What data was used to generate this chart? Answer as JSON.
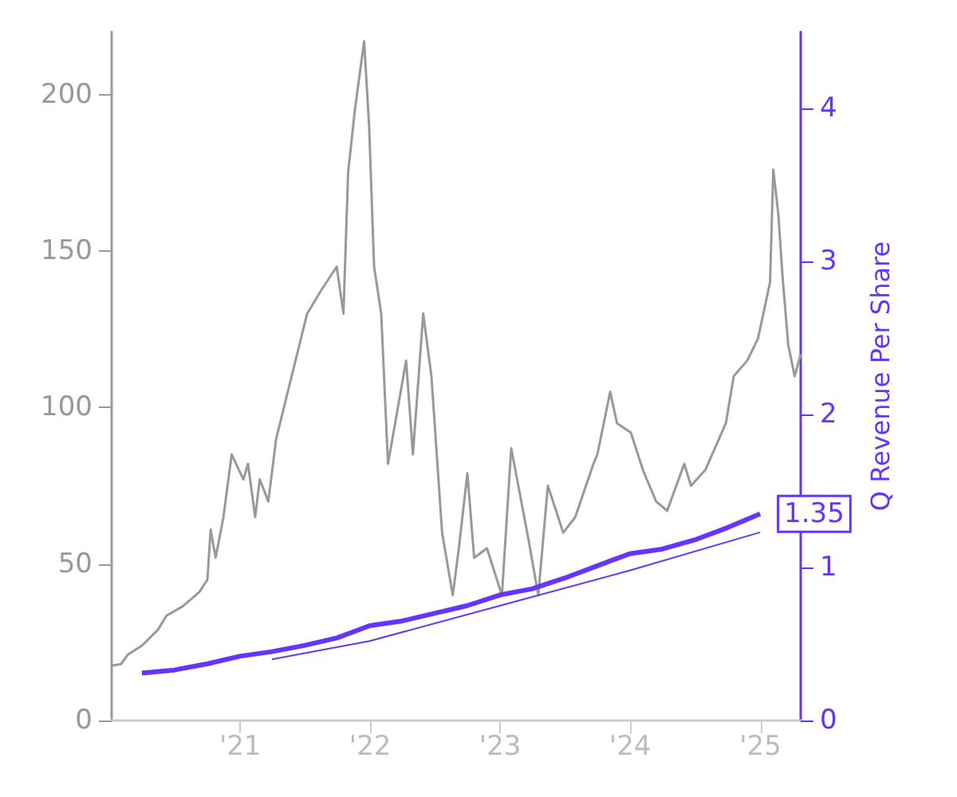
{
  "chart_data": {
    "type": "line",
    "y2label": "Q Revenue Per Share",
    "grid": false,
    "marker": "none",
    "xlim": [
      "2020-01-06",
      "2025-04-24"
    ],
    "xticks": [
      {
        "value": "2021-01-01",
        "label": "'21"
      },
      {
        "value": "2022-01-01",
        "label": "'22"
      },
      {
        "value": "2023-01-01",
        "label": "'23"
      },
      {
        "value": "2024-01-01",
        "label": "'24"
      },
      {
        "value": "2025-01-01",
        "label": "'25"
      }
    ],
    "ylim": [
      0,
      220
    ],
    "yticks": [
      0,
      50,
      100,
      150,
      200
    ],
    "y2lim": [
      0,
      4.5
    ],
    "y2ticks": [
      0,
      1,
      2,
      3,
      4
    ],
    "series": [
      {
        "color": "#999999",
        "x": [
          "2020-01-06",
          "2020-02-01",
          "2020-02-20",
          "2020-04-01",
          "2020-05-15",
          "2020-06-08",
          "2020-07-24",
          "2020-09-08",
          "2020-10-01",
          "2020-10-10",
          "2020-10-24",
          "2020-11-15",
          "2020-12-08",
          "2021-01-10",
          "2021-01-23",
          "2021-02-12",
          "2021-02-25",
          "2021-03-21",
          "2021-04-12",
          "2021-07-08",
          "2021-08-14",
          "2021-09-29",
          "2021-10-18",
          "2021-10-31",
          "2021-11-19",
          "2021-12-15",
          "2021-12-29",
          "2022-01-12",
          "2022-02-01",
          "2022-02-20",
          "2022-04-12",
          "2022-05-01",
          "2022-05-30",
          "2022-06-22",
          "2022-07-22",
          "2022-08-21",
          "2022-09-07",
          "2022-10-01",
          "2022-10-20",
          "2022-11-25",
          "2023-01-06",
          "2023-02-01",
          "2023-03-23",
          "2023-04-18",
          "2023-05-15",
          "2023-06-13",
          "2023-06-27",
          "2023-07-31",
          "2023-09-20",
          "2023-10-01",
          "2023-11-06",
          "2023-11-25",
          "2024-01-03",
          "2024-02-06",
          "2024-03-14",
          "2024-04-14",
          "2024-06-01",
          "2024-06-20",
          "2024-07-30",
          "2024-09-26",
          "2024-10-18",
          "2024-11-25",
          "2024-12-25",
          "2025-01-28",
          "2025-02-06",
          "2025-02-20",
          "2025-03-04",
          "2025-03-20",
          "2025-04-07",
          "2025-04-24"
        ],
        "values": [
          17.5,
          18,
          21,
          24,
          29,
          33.5,
          36.5,
          41,
          45,
          61,
          52,
          65,
          85,
          77,
          82,
          65,
          77,
          70,
          90,
          130,
          137,
          145,
          130,
          175,
          195,
          217,
          190,
          145,
          130,
          82,
          115,
          85,
          130,
          110,
          60,
          40,
          55,
          79,
          52,
          55,
          40,
          87,
          57,
          40,
          75,
          65,
          60,
          65,
          82,
          85,
          105,
          95,
          92,
          80,
          70,
          67,
          82,
          75,
          80,
          95,
          110,
          115,
          122,
          140,
          176,
          162,
          142,
          120,
          110,
          117
        ]
      },
      {
        "color": "#6633ff",
        "axis": "y2",
        "x": [
          "2020-03-31",
          "2020-06-30",
          "2020-09-30",
          "2020-12-31",
          "2021-03-31",
          "2021-06-30",
          "2021-09-30",
          "2021-12-31",
          "2022-03-31",
          "2022-06-30",
          "2022-09-30",
          "2022-12-31",
          "2023-03-31",
          "2023-06-30",
          "2023-09-30",
          "2023-12-31",
          "2024-03-31",
          "2024-06-30",
          "2024-09-30",
          "2024-12-31"
        ],
        "values": [
          0.31,
          0.33,
          0.37,
          0.42,
          0.45,
          0.49,
          0.54,
          0.62,
          0.65,
          0.7,
          0.75,
          0.82,
          0.86,
          0.93,
          1.01,
          1.09,
          1.12,
          1.18,
          1.26,
          1.35
        ],
        "value_labels": [
          null,
          null,
          null,
          null,
          null,
          null,
          null,
          null,
          null,
          null,
          null,
          null,
          null,
          null,
          null,
          null,
          null,
          null,
          null,
          "1.35"
        ]
      },
      {
        "color": "#6633ff",
        "axis": "y2",
        "x": [
          "2021-03-31",
          "2021-12-31",
          "2022-12-31",
          "2023-12-31",
          "2024-12-31"
        ],
        "values": [
          0.4,
          0.52,
          0.75,
          0.98,
          1.23
        ]
      }
    ]
  }
}
